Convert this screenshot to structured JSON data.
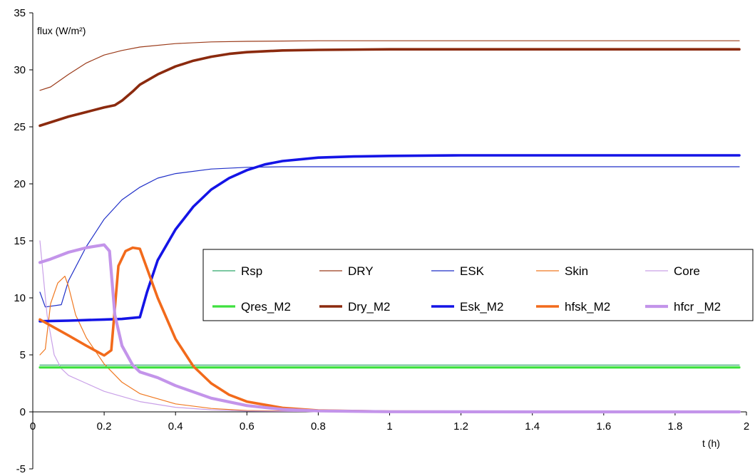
{
  "chart_data": {
    "type": "line",
    "title": "",
    "ylabel": "flux (W/m²)",
    "xlabel": "t (h)",
    "xlim": [
      0,
      2
    ],
    "ylim": [
      -5,
      35
    ],
    "x_ticks": [
      {
        "value": 0,
        "label": "0"
      },
      {
        "value": 0.2,
        "label": "0.2"
      },
      {
        "value": 0.4,
        "label": "0.4"
      },
      {
        "value": 0.6,
        "label": "0.6"
      },
      {
        "value": 0.8,
        "label": "0.8"
      },
      {
        "value": 1,
        "label": "1"
      },
      {
        "value": 1.2,
        "label": "1.2"
      },
      {
        "value": 1.4,
        "label": "1.4"
      },
      {
        "value": 1.6,
        "label": "1.6"
      },
      {
        "value": 1.8,
        "label": "1.8"
      },
      {
        "value": 2,
        "label": "2"
      }
    ],
    "y_ticks": [
      {
        "value": -5,
        "label": "-5"
      },
      {
        "value": 0,
        "label": "0"
      },
      {
        "value": 5,
        "label": "5"
      },
      {
        "value": 10,
        "label": "10"
      },
      {
        "value": 15,
        "label": "15"
      },
      {
        "value": 20,
        "label": "20"
      },
      {
        "value": 25,
        "label": "25"
      },
      {
        "value": 30,
        "label": "30"
      },
      {
        "value": 35,
        "label": "35"
      }
    ],
    "grid": false,
    "legend_position": "center-right",
    "series": [
      {
        "name": "Rsp",
        "color": "#2fa86b",
        "width": 1.2,
        "style": "thin",
        "x": [
          0.02,
          0.1,
          0.5,
          1,
          1.5,
          1.98
        ],
        "y": [
          4.1,
          4.1,
          4.1,
          4.1,
          4.1,
          4.1
        ]
      },
      {
        "name": "DRY",
        "color": "#9b3b1a",
        "width": 1.2,
        "style": "thin",
        "x": [
          0.02,
          0.05,
          0.1,
          0.15,
          0.2,
          0.25,
          0.3,
          0.4,
          0.5,
          0.6,
          0.8,
          1,
          1.5,
          1.98
        ],
        "y": [
          28.2,
          28.5,
          29.6,
          30.6,
          31.3,
          31.7,
          32.0,
          32.3,
          32.45,
          32.5,
          32.55,
          32.55,
          32.55,
          32.55
        ]
      },
      {
        "name": "ESK",
        "color": "#1f2fc8",
        "width": 1.2,
        "style": "thin",
        "x": [
          0.02,
          0.035,
          0.08,
          0.1,
          0.15,
          0.2,
          0.25,
          0.3,
          0.35,
          0.4,
          0.5,
          0.6,
          0.7,
          0.8,
          1,
          1.5,
          1.98
        ],
        "y": [
          10.5,
          9.2,
          9.4,
          11.5,
          14.5,
          16.9,
          18.6,
          19.7,
          20.5,
          20.9,
          21.3,
          21.45,
          21.5,
          21.5,
          21.5,
          21.5,
          21.5
        ]
      },
      {
        "name": "Skin",
        "color": "#f07820",
        "width": 1.2,
        "style": "thin",
        "x": [
          0.02,
          0.035,
          0.05,
          0.07,
          0.09,
          0.1,
          0.12,
          0.15,
          0.2,
          0.25,
          0.3,
          0.4,
          0.5,
          0.6,
          0.8,
          1,
          1.5,
          1.98
        ],
        "y": [
          5.0,
          5.5,
          9.5,
          11.3,
          11.9,
          11.0,
          8.5,
          6.5,
          4.2,
          2.6,
          1.6,
          0.7,
          0.3,
          0.12,
          0.03,
          0,
          0,
          0
        ]
      },
      {
        "name": "Core",
        "color": "#c9a0e8",
        "width": 1.2,
        "style": "thin",
        "x": [
          0.02,
          0.04,
          0.06,
          0.08,
          0.1,
          0.15,
          0.2,
          0.3,
          0.4,
          0.5,
          0.6,
          0.8,
          1,
          1.5,
          1.98
        ],
        "y": [
          15.0,
          8.5,
          5.0,
          3.8,
          3.2,
          2.5,
          1.8,
          0.9,
          0.4,
          0.18,
          0.07,
          0.02,
          0,
          0,
          0
        ]
      },
      {
        "name": "Qres_M2",
        "color": "#3fe03f",
        "width": 3.2,
        "style": "thick",
        "x": [
          0.02,
          0.5,
          1,
          1.5,
          1.98
        ],
        "y": [
          3.9,
          3.9,
          3.9,
          3.9,
          3.9
        ]
      },
      {
        "name": "Dry_M2",
        "color": "#8b2a0e",
        "width": 3.6,
        "style": "thick",
        "x": [
          0.02,
          0.05,
          0.1,
          0.15,
          0.2,
          0.23,
          0.25,
          0.28,
          0.3,
          0.35,
          0.4,
          0.45,
          0.5,
          0.55,
          0.6,
          0.7,
          0.8,
          1,
          1.5,
          1.98
        ],
        "y": [
          25.1,
          25.4,
          25.9,
          26.3,
          26.7,
          26.9,
          27.3,
          28.1,
          28.7,
          29.6,
          30.3,
          30.8,
          31.15,
          31.4,
          31.55,
          31.7,
          31.75,
          31.8,
          31.8,
          31.8
        ]
      },
      {
        "name": "Esk_M2",
        "color": "#1414e6",
        "width": 3.6,
        "style": "thick",
        "x": [
          0.02,
          0.1,
          0.2,
          0.25,
          0.3,
          0.32,
          0.35,
          0.4,
          0.45,
          0.5,
          0.55,
          0.6,
          0.65,
          0.7,
          0.8,
          0.9,
          1,
          1.2,
          1.5,
          1.98
        ],
        "y": [
          7.95,
          8.0,
          8.1,
          8.15,
          8.3,
          10.5,
          13.3,
          16.0,
          18.0,
          19.5,
          20.5,
          21.2,
          21.7,
          22.0,
          22.3,
          22.4,
          22.45,
          22.5,
          22.5,
          22.5
        ]
      },
      {
        "name": "hfsk_M2",
        "color": "#f26a1b",
        "width": 3.6,
        "style": "thick",
        "x": [
          0.02,
          0.1,
          0.15,
          0.2,
          0.22,
          0.24,
          0.26,
          0.28,
          0.3,
          0.35,
          0.4,
          0.45,
          0.5,
          0.55,
          0.6,
          0.7,
          0.8,
          1,
          1.5,
          1.98
        ],
        "y": [
          8.1,
          6.7,
          5.8,
          4.95,
          5.4,
          12.8,
          14.1,
          14.4,
          14.3,
          10.0,
          6.4,
          4.0,
          2.5,
          1.5,
          0.9,
          0.35,
          0.12,
          0.02,
          0,
          0
        ]
      },
      {
        "name": "hfcr _M2",
        "color": "#c394ea",
        "width": 4.2,
        "style": "thick",
        "x": [
          0.02,
          0.05,
          0.1,
          0.15,
          0.2,
          0.215,
          0.23,
          0.25,
          0.28,
          0.3,
          0.35,
          0.4,
          0.5,
          0.6,
          0.7,
          0.8,
          1,
          1.5,
          1.98
        ],
        "y": [
          13.1,
          13.4,
          14.0,
          14.4,
          14.65,
          14.1,
          8.5,
          5.8,
          4.1,
          3.5,
          3.0,
          2.3,
          1.2,
          0.55,
          0.22,
          0.08,
          0.01,
          0,
          0
        ]
      }
    ]
  }
}
